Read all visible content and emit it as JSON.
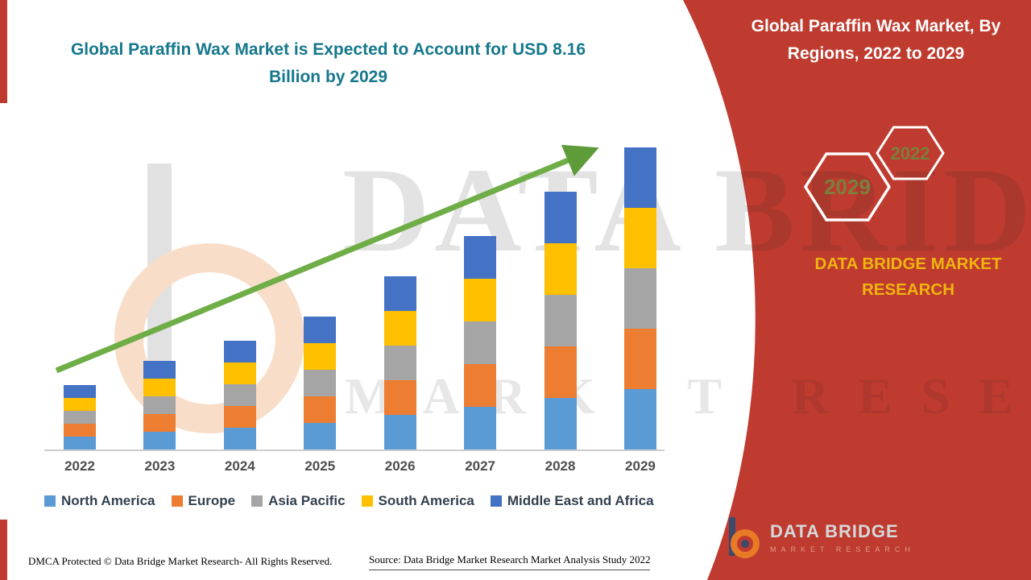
{
  "header": {
    "left_title": "Global Paraffin Wax Market is Expected to Account for USD 8.16 Billion by 2029"
  },
  "side_panel": {
    "heading": "Global Paraffin Wax Market, By Regions, 2022 to 2029",
    "badges": {
      "front": "2029",
      "back": "2022"
    },
    "brand_name": "DATA BRIDGE MARKET RESEARCH",
    "logo": {
      "title": "DATA BRIDGE",
      "subtitle": "MARKET RESEARCH"
    },
    "colors": {
      "panel_red": "#BF3B2F",
      "brand_gold": "#EFB50F",
      "badge_text": "#7B7F3D",
      "arrow_green": "#6FAD47"
    }
  },
  "watermark": {
    "line1": "DATA BRIDGE",
    "line2": "MARKET RESEARCH"
  },
  "footer": {
    "dmca": "DMCA Protected © Data Bridge Market Research- All Rights Reserved.",
    "source": "Source: Data Bridge Market Research Market Analysis Study 2022"
  },
  "chart_data": {
    "type": "bar",
    "stacked": true,
    "title": "Global Paraffin Wax Market is Expected to Account for USD 8.16 Billion by 2029",
    "unit": "USD Billion",
    "categories": [
      "2022",
      "2023",
      "2024",
      "2025",
      "2026",
      "2027",
      "2028",
      "2029"
    ],
    "series": [
      {
        "name": "North America",
        "color": "#5B9BD5",
        "values": [
          0.35,
          0.47,
          0.59,
          0.71,
          0.93,
          1.16,
          1.4,
          1.63
        ]
      },
      {
        "name": "Europe",
        "color": "#ED7D31",
        "values": [
          0.35,
          0.47,
          0.59,
          0.71,
          0.93,
          1.16,
          1.4,
          1.63
        ]
      },
      {
        "name": "Asia Pacific",
        "color": "#A5A5A5",
        "values": [
          0.35,
          0.47,
          0.59,
          0.71,
          0.93,
          1.16,
          1.4,
          1.63
        ]
      },
      {
        "name": "South America",
        "color": "#FFC000",
        "values": [
          0.35,
          0.47,
          0.59,
          0.71,
          0.93,
          1.16,
          1.4,
          1.63
        ]
      },
      {
        "name": "Middle East and Africa",
        "color": "#4472C4",
        "values": [
          0.35,
          0.47,
          0.59,
          0.71,
          0.93,
          1.16,
          1.4,
          1.63
        ]
      }
    ],
    "totals_estimated": [
      1.77,
      2.36,
      2.94,
      3.55,
      4.65,
      5.82,
      6.99,
      8.16
    ],
    "ylim": [
      0,
      8.5
    ],
    "grid": false,
    "legend_position": "bottom",
    "trend_arrow": true
  }
}
